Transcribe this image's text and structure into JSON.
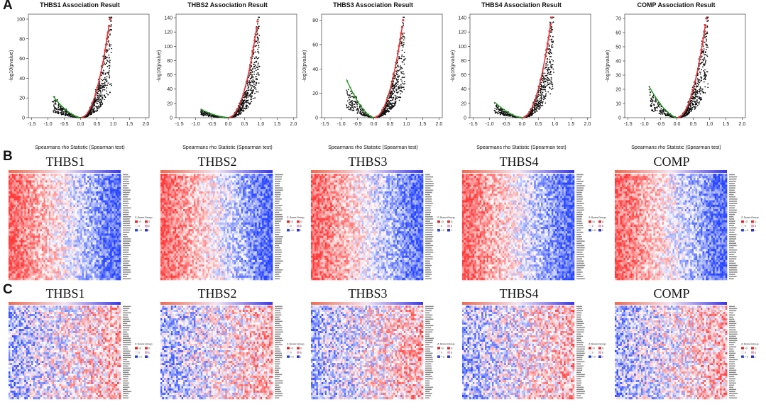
{
  "figure": {
    "panel_labels": [
      "A",
      "B",
      "C"
    ]
  },
  "volcano_panels": [
    {
      "title": "THBS1 Association Result",
      "ylim": [
        0,
        105
      ],
      "yticks": [
        0,
        20,
        40,
        60,
        80,
        100
      ],
      "peak": 100,
      "left_peak": 22
    },
    {
      "title": "THBS2 Association Result",
      "ylim": [
        0,
        145
      ],
      "yticks": [
        0,
        20,
        40,
        60,
        80,
        100,
        120,
        140
      ],
      "peak": 135,
      "left_peak": 12
    },
    {
      "title": "THBS3 Association Result",
      "ylim": [
        0,
        85
      ],
      "yticks": [
        0,
        20,
        40,
        60,
        80
      ],
      "peak": 80,
      "left_peak": 32
    },
    {
      "title": "THBS4 Association Result",
      "ylim": [
        0,
        145
      ],
      "yticks": [
        0,
        20,
        40,
        60,
        80,
        100,
        120,
        140
      ],
      "peak": 140,
      "left_peak": 22
    },
    {
      "title": "COMP Association Result",
      "ylim": [
        0,
        73
      ],
      "yticks": [
        0,
        10,
        20,
        30,
        40,
        50,
        60,
        70
      ],
      "peak": 70,
      "left_peak": 22
    }
  ],
  "volcano_axes": {
    "xlabel": "Spearmans rho Statistic (Spearman test)",
    "ylabel": "-log10(pvalue)",
    "xticks": [
      "-1.5",
      "-1.0",
      "-0.5",
      "0.0",
      "0.5",
      "1.0",
      "1.5",
      "2.0"
    ],
    "xlim": [
      -1.6,
      2.1
    ]
  },
  "heatmap_rows": [
    {
      "label": "B",
      "titles": [
        "THBS1",
        "THBS2",
        "THBS3",
        "THBS4",
        "COMP"
      ],
      "pattern": "red-to-blue"
    },
    {
      "label": "C",
      "titles": [
        "THBS1",
        "THBS2",
        "THBS3",
        "THBS4",
        "COMP"
      ],
      "pattern": "blue-to-red"
    }
  ],
  "legend": {
    "zscore_header": "Z-Score",
    "group_header": "Group",
    "zscore_values": [
      ">3",
      "0",
      "<-3"
    ],
    "group_values": [
      "G",
      "E",
      "L"
    ]
  },
  "colors": {
    "red": "#e8383b",
    "blue": "#2a4fd6",
    "green": "#22a022",
    "gradient_start": "#f06a4e",
    "gradient_end": "#3535ef"
  },
  "chart_data": [
    {
      "type": "scatter",
      "title": "THBS1 Association Result",
      "xlabel": "Spearmans rho Statistic (Spearman test)",
      "ylabel": "-log10(pvalue)",
      "xlim": [
        -1.6,
        2.1
      ],
      "ylim": [
        0,
        105
      ]
    },
    {
      "type": "scatter",
      "title": "THBS2 Association Result",
      "xlabel": "Spearmans rho Statistic (Spearman test)",
      "ylabel": "-log10(pvalue)",
      "xlim": [
        -1.6,
        2.1
      ],
      "ylim": [
        0,
        145
      ]
    },
    {
      "type": "scatter",
      "title": "THBS3 Association Result",
      "xlabel": "Spearmans rho Statistic (Spearman test)",
      "ylabel": "-log10(pvalue)",
      "xlim": [
        -1.6,
        2.1
      ],
      "ylim": [
        0,
        85
      ]
    },
    {
      "type": "scatter",
      "title": "THBS4 Association Result",
      "xlabel": "Spearmans rho Statistic (Spearman test)",
      "ylabel": "-log10(pvalue)",
      "xlim": [
        -1.6,
        2.1
      ],
      "ylim": [
        0,
        145
      ]
    },
    {
      "type": "scatter",
      "title": "COMP Association Result",
      "xlabel": "Spearmans rho Statistic (Spearman test)",
      "ylabel": "-log10(pvalue)",
      "xlim": [
        -1.6,
        2.1
      ],
      "ylim": [
        0,
        73
      ]
    },
    {
      "type": "heatmap",
      "title": "THBS1"
    },
    {
      "type": "heatmap",
      "title": "THBS2"
    },
    {
      "type": "heatmap",
      "title": "THBS3"
    },
    {
      "type": "heatmap",
      "title": "THBS4"
    },
    {
      "type": "heatmap",
      "title": "COMP"
    }
  ]
}
